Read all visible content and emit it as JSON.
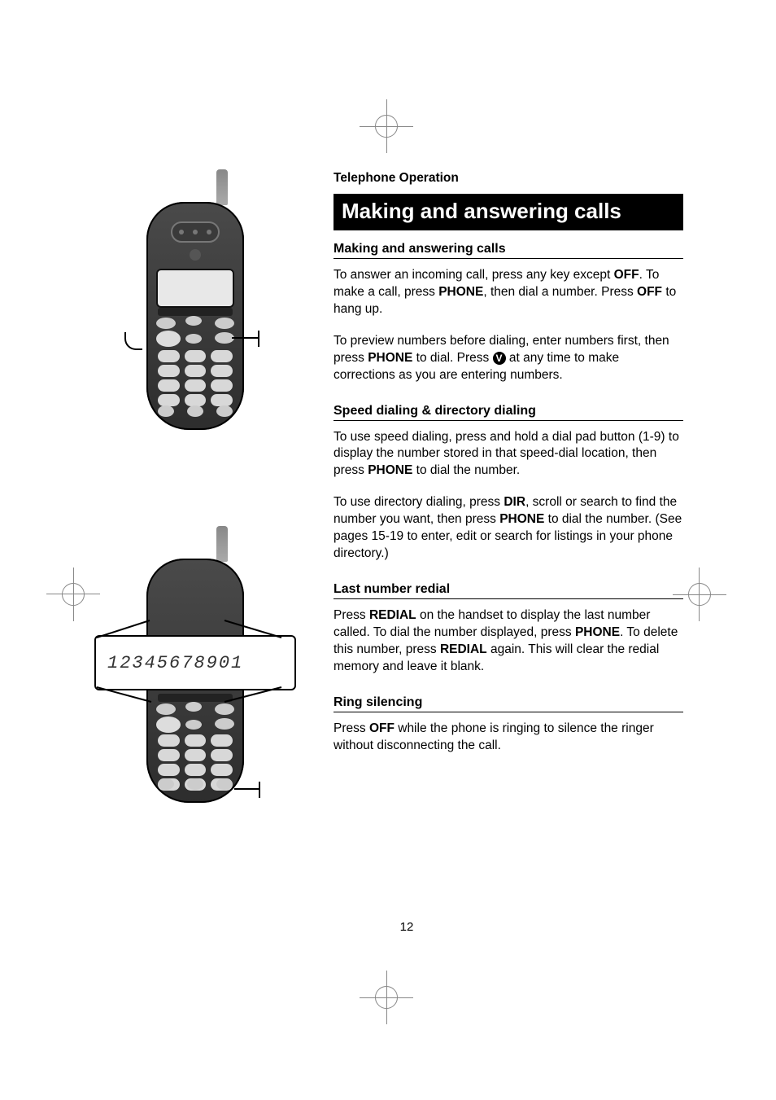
{
  "section_label": "Telephone Operation",
  "title": "Making and answering calls",
  "page_number": "12",
  "screen_zoom_number": "12345678901",
  "blocks": {
    "making": {
      "heading": "Making and answering calls",
      "p1_parts": [
        "To answer an incoming call, press any key except ",
        "OFF",
        ". To make a call, press ",
        "PHONE",
        ", then dial a number. Press ",
        "OFF",
        " to hang up."
      ],
      "p2_parts": [
        "To preview numbers before dialing, enter numbers first, then press ",
        "PHONE",
        "  to dial. Press ",
        "V",
        " at any time to make corrections as you are entering numbers."
      ]
    },
    "speed": {
      "heading": "Speed dialing & directory dialing",
      "p1_parts": [
        "To use speed dialing, press and hold a dial pad button (1-9) to display the number stored in that speed-dial location, then press ",
        "PHONE",
        " to dial the number."
      ],
      "p2_parts": [
        "To use directory dialing, press ",
        "DIR",
        ", scroll or search to find the number you want, then press ",
        "PHONE",
        " to dial the number. (See pages 15-19 to enter, edit or search for listings in your phone directory.)"
      ]
    },
    "redial": {
      "heading": "Last number redial",
      "p1_parts": [
        "Press ",
        "REDIAL",
        " on the handset to display the last number called. To dial the number displayed, press ",
        "PHONE",
        ". To delete this number, press ",
        "REDIAL",
        " again. This will clear the redial memory and leave it blank."
      ]
    },
    "ring": {
      "heading": "Ring silencing",
      "p1_parts": [
        "Press ",
        "OFF",
        " while the phone is ringing to silence the ringer without disconnecting the call."
      ]
    }
  },
  "colors": {
    "title_bg": "#000000",
    "title_fg": "#ffffff",
    "text": "#000000",
    "phone_body": "#3a3a3a",
    "key": "#d8d8d8"
  },
  "bold_indices_making_p1": [
    1,
    3,
    5
  ],
  "bold_indices_making_p2": [
    1,
    3
  ],
  "bold_indices_speed_p1": [
    1
  ],
  "bold_indices_speed_p2": [
    1,
    3
  ],
  "bold_indices_redial_p1": [
    1,
    3,
    5
  ],
  "bold_indices_ring_p1": [
    1
  ]
}
